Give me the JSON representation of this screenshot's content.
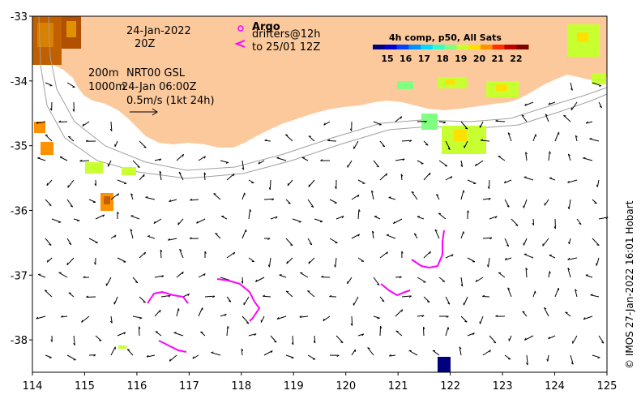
{
  "map": {
    "lon_range": [
      114,
      125
    ],
    "lat_range": [
      -38.5,
      -33
    ],
    "x_ticks": [
      "114",
      "115",
      "116",
      "117",
      "118",
      "119",
      "120",
      "121",
      "122",
      "123",
      "124",
      "125"
    ],
    "y_ticks": [
      "-33",
      "-34",
      "-35",
      "-36",
      "-37",
      "-38"
    ],
    "land_color": "#fcc99c",
    "arrow_color": "#000000",
    "drifter_color": "#ff00ff",
    "isobath_color": "#a0a0a0"
  },
  "annotations": {
    "date": "24-Jan-2022",
    "time": "20Z",
    "depth_200": "200m",
    "depth_1000": "1000m",
    "model": "NRT00 GSL",
    "model_time": "24-Jan 06:00Z",
    "scale": "0.5m/s (1kt 24h)"
  },
  "legend": {
    "argo_label": "Argo",
    "drifters_label": "drifters@12h",
    "drifters_to": "to 25/01 12Z"
  },
  "colorbar": {
    "title": "4h comp, p50, All Sats",
    "labels": [
      "15",
      "16",
      "17",
      "18",
      "19",
      "20",
      "21",
      "22"
    ],
    "colors": [
      "#00007f",
      "#0000d0",
      "#0040ff",
      "#0090ff",
      "#00d8ff",
      "#30ffc8",
      "#80ff80",
      "#c8ff30",
      "#ffe000",
      "#ff9000",
      "#ff3000",
      "#c00000",
      "#7f0000"
    ]
  },
  "credit": "© IMOS 27-Jan-2022 16:01 Hobart"
}
